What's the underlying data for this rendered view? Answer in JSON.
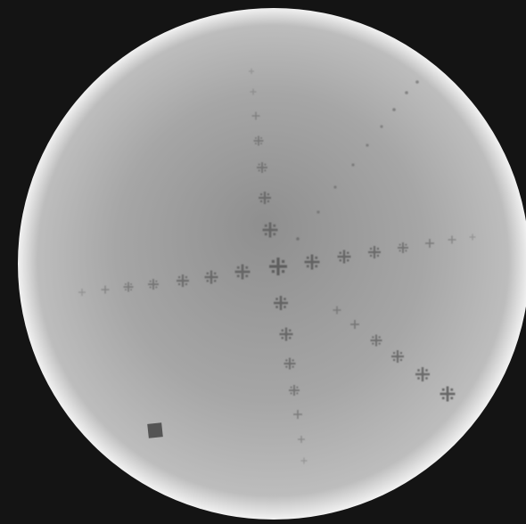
{
  "image": {
    "background_color": "#141414",
    "field_colors": {
      "rim": "#f2f2f2",
      "outer": "#bdbdbd",
      "mid": "#a6a6a6",
      "center": "#8f8f8f"
    },
    "marker_color": "#5a5a5a",
    "square_marker_color": "#555555"
  }
}
